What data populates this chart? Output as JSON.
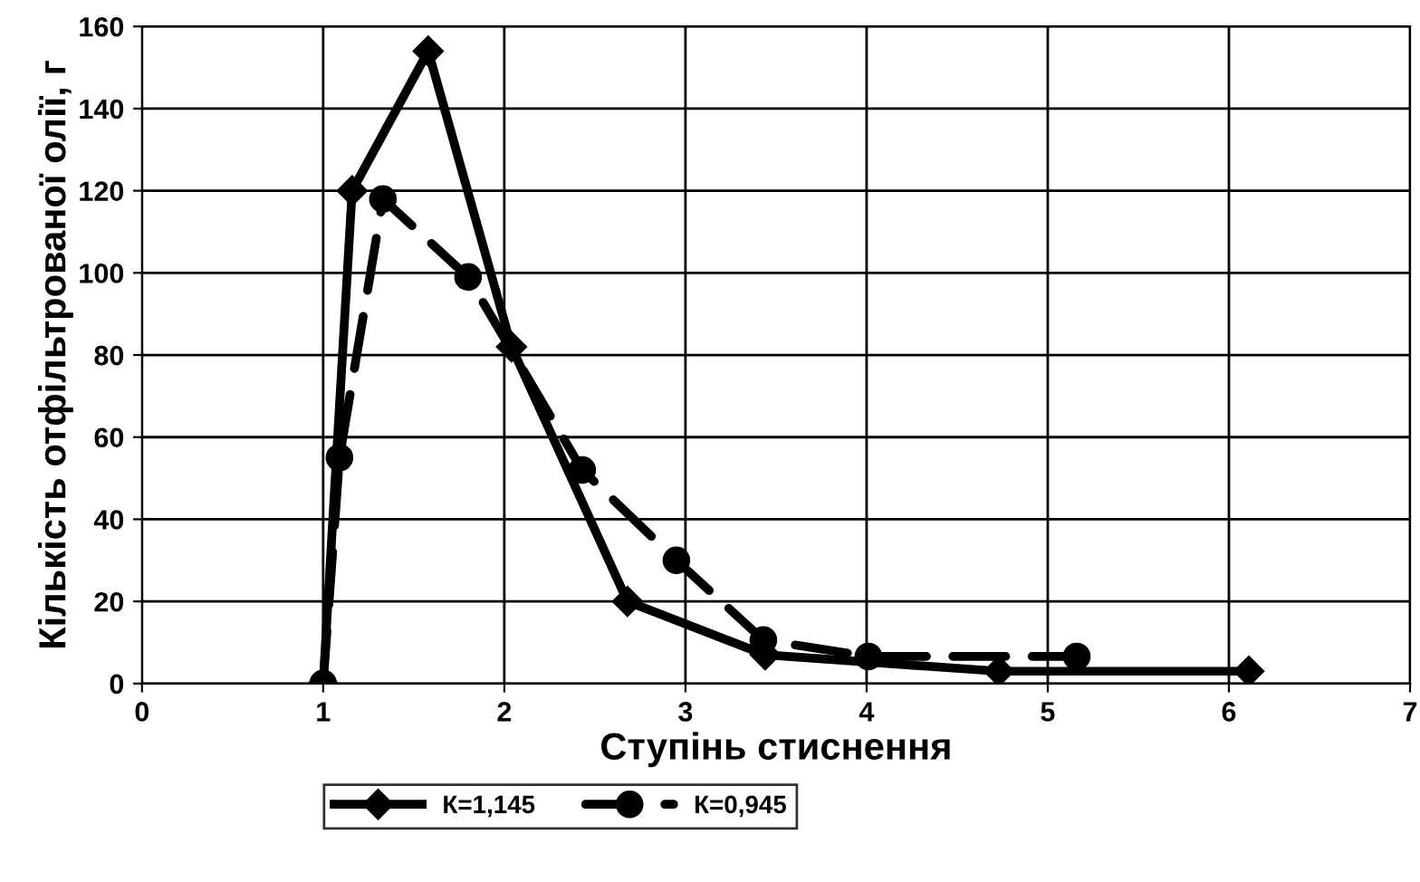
{
  "chart_data": {
    "type": "line",
    "xlabel": "Ступінь стиснення",
    "ylabel": "Кількість отфільтрованої олії, г",
    "series": [
      {
        "name": "К=1,145",
        "color": "#000000",
        "marker": "diamond",
        "line_style": "solid",
        "x": [
          1.0,
          1.16,
          1.58,
          2.04,
          2.68,
          3.44,
          4.73,
          6.11
        ],
        "values": [
          0,
          120,
          154,
          82,
          20,
          7,
          3,
          3
        ]
      },
      {
        "name": "К=0,945",
        "color": "#000000",
        "marker": "circle",
        "line_style": "dashed",
        "x": [
          1.0,
          1.09,
          1.33,
          1.8,
          2.43,
          2.95,
          3.43,
          4.01,
          5.16
        ],
        "values": [
          0,
          55,
          118,
          99,
          52,
          30,
          10.6,
          6.6,
          6.6
        ]
      }
    ],
    "xlim": [
      0,
      7
    ],
    "xticks": [
      0,
      1,
      2,
      3,
      4,
      5,
      6,
      7
    ],
    "ylim": [
      0,
      160
    ],
    "yticks": [
      0,
      20,
      40,
      60,
      80,
      100,
      120,
      140,
      160
    ],
    "grid": true,
    "legend": "bottom"
  }
}
